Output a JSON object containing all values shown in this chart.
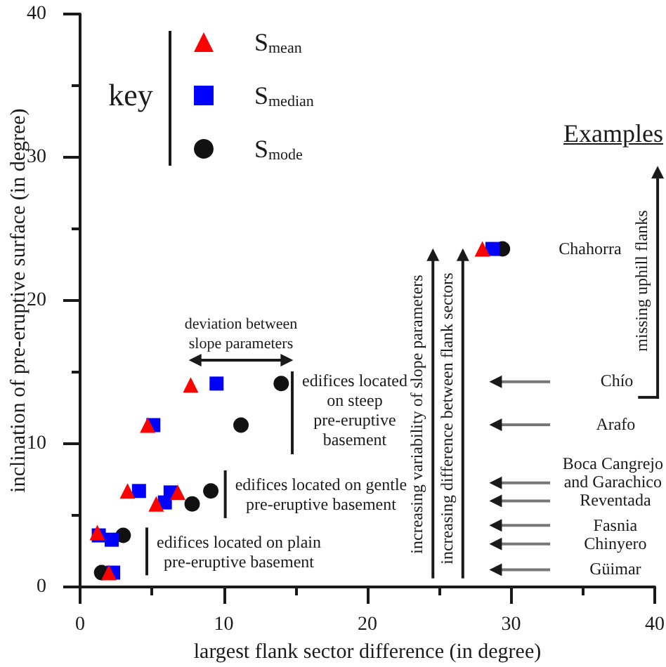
{
  "chart_data": {
    "type": "scatter",
    "xlabel": "largest flank sector difference (in degree)",
    "ylabel": "inclination of pre-eruptive surface (in degree)",
    "legend_title": "key",
    "legend": "top left",
    "grid": false,
    "xlim": [
      0,
      40
    ],
    "xticks": [
      0,
      {
        "value": 5,
        "label": null
      },
      10,
      {
        "value": 15,
        "label": null
      },
      20,
      {
        "value": 25,
        "label": null
      },
      30,
      {
        "value": 35,
        "label": null
      },
      40
    ],
    "ylim": [
      0,
      40
    ],
    "yticks": [
      0,
      {
        "value": 5,
        "label": null
      },
      10,
      {
        "value": 15,
        "label": null
      },
      20,
      {
        "value": 25,
        "label": null
      },
      30,
      {
        "value": 35,
        "label": null
      },
      40
    ],
    "series": [
      {
        "name": "S$_{mean}$",
        "color": "#ff0000",
        "marker": "triangle",
        "x": [
          2.0,
          1.2,
          5.3,
          3.3,
          6.8,
          4.7,
          7.7,
          28.0
        ],
        "values": [
          1.0,
          3.8,
          5.8,
          6.7,
          6.6,
          11.3,
          14.1,
          23.6
        ]
      },
      {
        "name": "S$_{median}$",
        "color": "#0000ff",
        "marker": "square",
        "x": [
          2.3,
          1.3,
          2.2,
          5.9,
          4.1,
          6.3,
          5.1,
          9.5,
          28.7
        ],
        "values": [
          1.0,
          3.6,
          3.3,
          5.9,
          6.7,
          6.6,
          11.3,
          14.2,
          23.6
        ]
      },
      {
        "name": "S$_{mode}$",
        "color": "#111111",
        "marker": "circle",
        "x": [
          1.5,
          3.0,
          7.8,
          9.1,
          11.2,
          14.0,
          29.4
        ],
        "values": [
          1.0,
          3.6,
          5.8,
          6.7,
          11.3,
          14.2,
          23.6
        ]
      }
    ],
    "annotations": [
      "deviation between slope parameters",
      "edifices located on steep pre-eruptive basement",
      "edifices located on gentle pre-eruptive basement",
      "edifices located on plain pre-eruptive basement",
      "increasing variability of slope parameters",
      "increasing difference between flank sectors",
      "Examples",
      "missing uphill flanks",
      "Chahorra",
      "Chío",
      "Arafo",
      "Boca Cangrejo and Garachico",
      "Reventada",
      "Fasnia",
      "Chinyero",
      "Güimar"
    ]
  }
}
